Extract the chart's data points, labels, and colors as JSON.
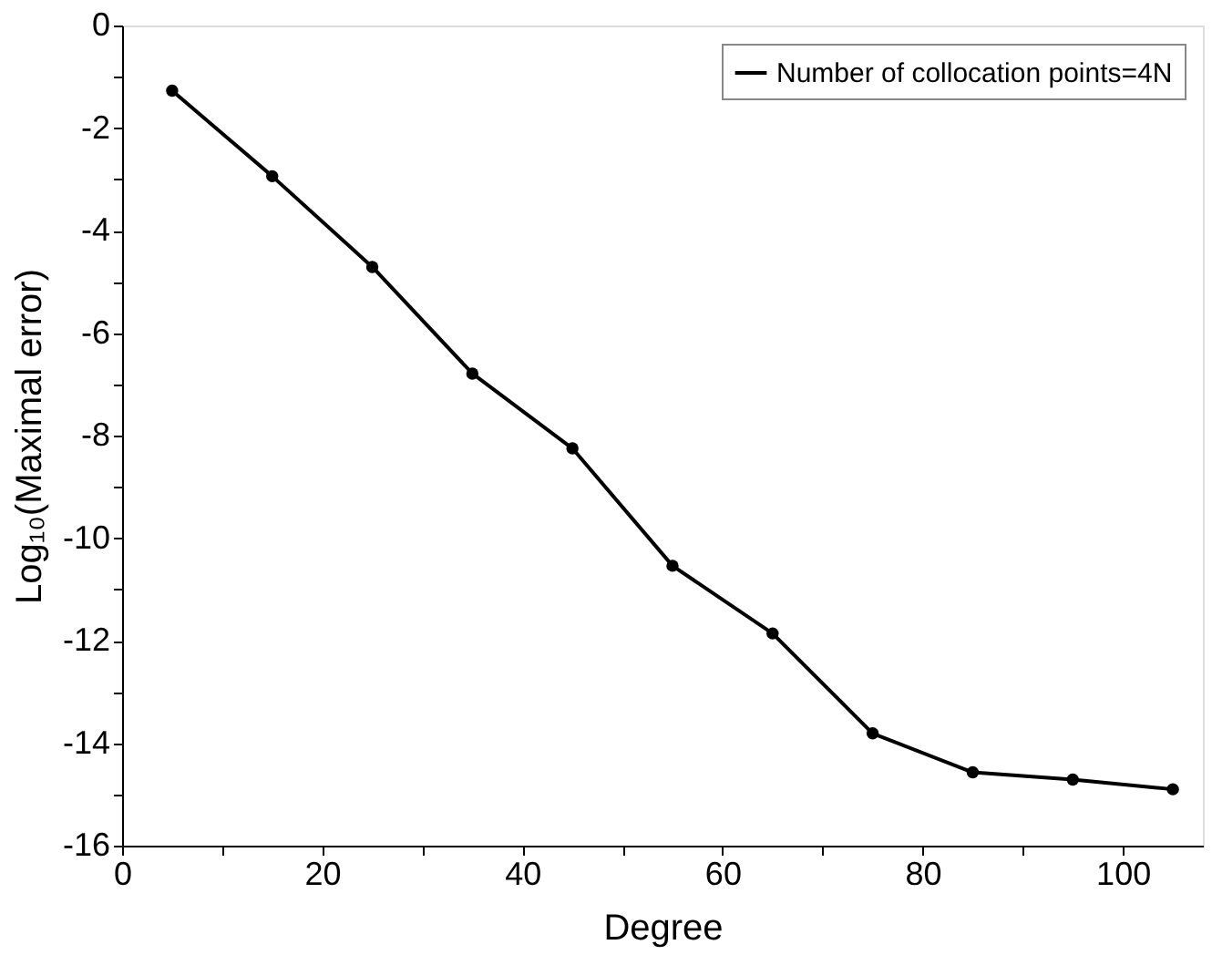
{
  "chart_data": {
    "type": "line",
    "xlabel": "Degree",
    "ylabel": "Log₁₀(Maximal error)",
    "x": [
      5,
      15,
      25,
      35,
      45,
      55,
      65,
      75,
      85,
      95,
      105
    ],
    "series": [
      {
        "name": "Number of collocation points=4N",
        "color": "#000000",
        "values": [
          -1.27,
          -2.94,
          -4.71,
          -6.79,
          -8.25,
          -10.54,
          -11.86,
          -13.81,
          -14.57,
          -14.71,
          -14.9
        ]
      }
    ],
    "xlim": [
      0,
      108
    ],
    "xticks": [
      0,
      {
        "value": 10,
        "label": null
      },
      20,
      {
        "value": 30,
        "label": null
      },
      40,
      {
        "value": 50,
        "label": null
      },
      60,
      {
        "value": 70,
        "label": null
      },
      80,
      {
        "value": 90,
        "label": null
      },
      100
    ],
    "ylim": [
      -16,
      0
    ],
    "yticks": [
      -16,
      {
        "value": -15,
        "label": null
      },
      -14,
      {
        "value": -13,
        "label": null
      },
      -12,
      {
        "value": -11,
        "label": null
      },
      -10,
      {
        "value": -9,
        "label": null
      },
      -8,
      {
        "value": -7,
        "label": null
      },
      -6,
      {
        "value": -5,
        "label": null
      },
      -4,
      {
        "value": -3,
        "label": null
      },
      -2,
      {
        "value": -1,
        "label": null
      },
      0
    ],
    "marker": "circle",
    "line_style": "solid",
    "grid": false,
    "legend": "top right"
  }
}
